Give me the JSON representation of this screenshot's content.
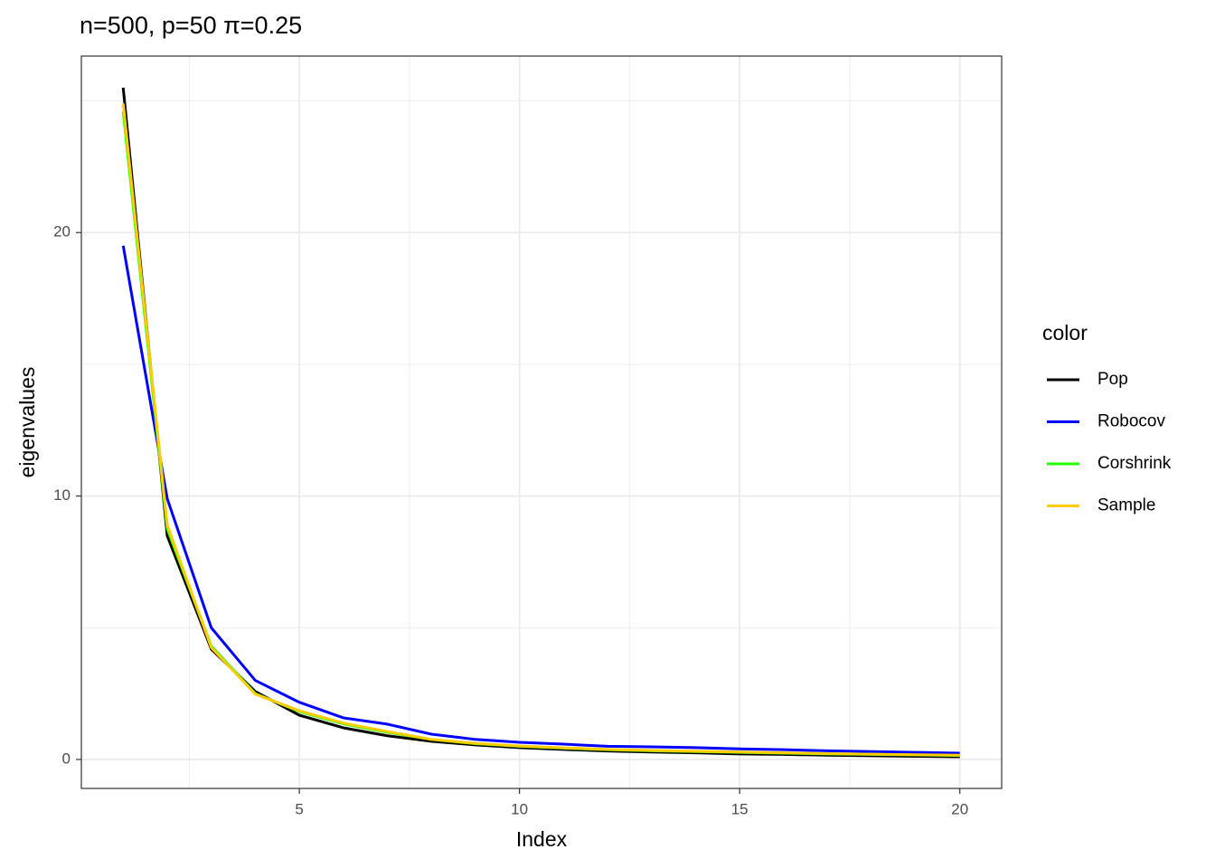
{
  "chart_data": {
    "type": "line",
    "title": "n=500, p=50 π=0.25",
    "xlabel": "Index",
    "ylabel": "eigenvalues",
    "legend_title": "color",
    "x": [
      1,
      2,
      3,
      4,
      5,
      6,
      7,
      8,
      9,
      10,
      11,
      12,
      13,
      14,
      15,
      16,
      17,
      18,
      19,
      20
    ],
    "series": [
      {
        "name": "Pop",
        "color": "#000000",
        "values": [
          25.5,
          8.49,
          4.19,
          2.58,
          1.68,
          1.2,
          0.9,
          0.69,
          0.55,
          0.45,
          0.38,
          0.32,
          0.28,
          0.25,
          0.21,
          0.19,
          0.16,
          0.14,
          0.12,
          0.1
        ]
      },
      {
        "name": "Robocov",
        "color": "#0000ff",
        "values": [
          19.5,
          9.9,
          5.0,
          3.0,
          2.17,
          1.58,
          1.34,
          0.96,
          0.76,
          0.65,
          0.58,
          0.5,
          0.48,
          0.45,
          0.4,
          0.37,
          0.33,
          0.3,
          0.27,
          0.24
        ]
      },
      {
        "name": "Corshrink",
        "color": "#22ff00",
        "values": [
          24.6,
          8.76,
          4.3,
          2.5,
          1.82,
          1.35,
          1.03,
          0.76,
          0.6,
          0.5,
          0.43,
          0.37,
          0.33,
          0.3,
          0.27,
          0.24,
          0.21,
          0.19,
          0.17,
          0.15
        ]
      },
      {
        "name": "Sample",
        "color": "#ffcc00",
        "values": [
          24.9,
          8.9,
          4.25,
          2.48,
          1.85,
          1.38,
          1.06,
          0.76,
          0.61,
          0.51,
          0.44,
          0.38,
          0.34,
          0.31,
          0.28,
          0.25,
          0.22,
          0.2,
          0.18,
          0.16
        ]
      }
    ],
    "xlim": [
      0.05,
      20.95
    ],
    "ylim": [
      -1.1,
      26.7
    ],
    "xticks": [
      5,
      10,
      15,
      20
    ],
    "yticks": [
      0,
      10,
      20
    ],
    "x_minor_grid": [
      2.5,
      7.5,
      12.5,
      17.5
    ],
    "y_minor_grid": [
      5,
      15,
      25
    ],
    "grid": true,
    "legend": "right"
  }
}
